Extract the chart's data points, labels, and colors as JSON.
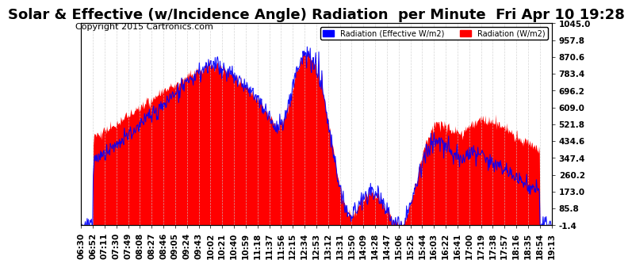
{
  "title": "Solar & Effective (w/Incidence Angle) Radiation  per Minute  Fri Apr 10 19:28",
  "copyright": "Copyright 2015 Cartronics.com",
  "legend_label1": "Radiation (Effective W/m2)",
  "legend_label2": "Radiation (W/m2)",
  "legend_color1": "#0000ff",
  "legend_color2": "#ff0000",
  "ylabel_right_ticks": [
    1045.0,
    957.8,
    870.6,
    783.4,
    696.2,
    609.0,
    521.8,
    434.6,
    347.4,
    260.2,
    173.0,
    85.8,
    -1.4
  ],
  "ymin": -1.4,
  "ymax": 1045.0,
  "background_color": "#ffffff",
  "plot_bg_color": "#ffffff",
  "grid_color": "#cccccc",
  "fill_color": "#ff0000",
  "line_color": "#0000ff",
  "title_fontsize": 13,
  "copyright_fontsize": 8,
  "tick_fontsize": 7.5,
  "x_tick_labels": [
    "06:30",
    "06:52",
    "07:11",
    "07:30",
    "07:49",
    "08:08",
    "08:27",
    "08:46",
    "09:05",
    "09:24",
    "09:43",
    "10:02",
    "10:21",
    "10:40",
    "10:59",
    "11:18",
    "11:37",
    "11:56",
    "12:15",
    "12:34",
    "12:53",
    "13:12",
    "13:31",
    "13:50",
    "14:09",
    "14:28",
    "14:47",
    "15:06",
    "15:25",
    "15:44",
    "16:03",
    "16:22",
    "16:41",
    "17:00",
    "17:19",
    "17:38",
    "17:57",
    "18:16",
    "18:35",
    "18:54",
    "19:13"
  ]
}
